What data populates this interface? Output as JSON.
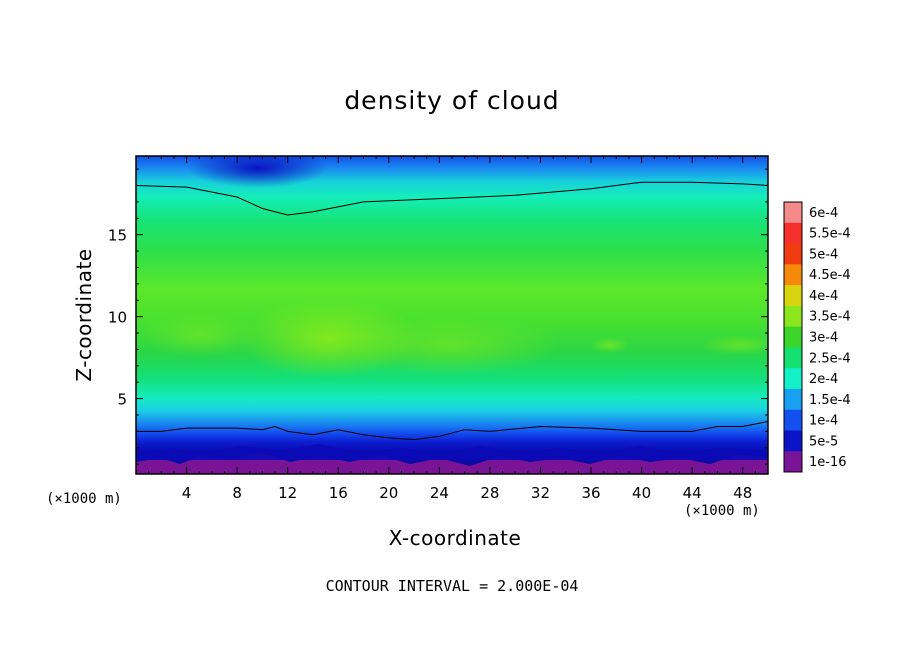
{
  "chart_data": {
    "type": "heatmap",
    "title": "density of cloud",
    "xlabel": "X-coordinate",
    "ylabel": "Z-coordinate",
    "x_unit_left": "(×1000 m)",
    "x_unit_right": "(×1000 m)",
    "footer": "CONTOUR INTERVAL = 2.000E-04",
    "xlim": [
      0,
      50
    ],
    "ylim": [
      0.4,
      19.8
    ],
    "x_ticks": [
      4,
      8,
      12,
      16,
      20,
      24,
      28,
      32,
      36,
      40,
      44,
      48
    ],
    "x_tick_labels": [
      "4",
      "8",
      "12",
      "16",
      "20",
      "24",
      "28",
      "32",
      "36",
      "40",
      "44",
      "48"
    ],
    "y_ticks": [
      5,
      10,
      15
    ],
    "y_tick_labels": [
      "5",
      "10",
      "15"
    ],
    "colorbar": {
      "levels": [
        "6e-4",
        "5.5e-4",
        "5e-4",
        "4.5e-4",
        "4e-4",
        "3.5e-4",
        "3e-4",
        "2.5e-4",
        "2e-4",
        "1.5e-4",
        "1e-4",
        "5e-5",
        "1e-16"
      ],
      "colors": [
        "#f48a8a",
        "#f5302d",
        "#f03c10",
        "#f58a0a",
        "#d9d410",
        "#8ce61e",
        "#3cd62a",
        "#14e070",
        "#14f0c8",
        "#1aa0f0",
        "#1450f0",
        "#0c14c8",
        "#7a1496"
      ]
    },
    "contour_lines": [
      {
        "name": "upper",
        "x": [
          0,
          4,
          8,
          10,
          12,
          14,
          18,
          24,
          30,
          36,
          40,
          44,
          48,
          50
        ],
        "z": [
          18.0,
          17.9,
          17.3,
          16.6,
          16.2,
          16.4,
          17.0,
          17.2,
          17.4,
          17.8,
          18.2,
          18.2,
          18.1,
          18.0
        ]
      },
      {
        "name": "lower",
        "x": [
          0,
          2,
          4,
          6,
          8,
          10,
          11,
          12,
          14,
          16,
          18,
          20,
          22,
          24,
          26,
          28,
          32,
          36,
          40,
          44,
          46,
          48,
          50
        ],
        "z": [
          3.0,
          3.0,
          3.2,
          3.2,
          3.2,
          3.1,
          3.3,
          3.0,
          2.8,
          3.1,
          2.8,
          2.6,
          2.5,
          2.7,
          3.1,
          3.0,
          3.3,
          3.2,
          3.0,
          3.0,
          3.3,
          3.3,
          3.6
        ]
      }
    ]
  }
}
